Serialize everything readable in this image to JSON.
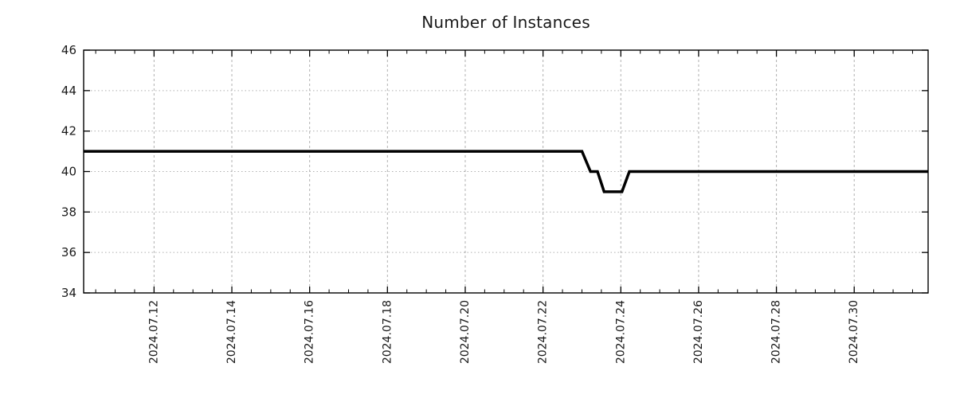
{
  "chart_data": {
    "type": "line",
    "title": "Number of Instances",
    "xlabel": "",
    "ylabel": "",
    "legend": "none",
    "grid": true,
    "x_axis": {
      "unit": "date (July 2024, decimal day-of-month)",
      "range": [
        10.19,
        31.9
      ],
      "minor_interval_days": 0.5,
      "major_ticks": [
        {
          "d": 12,
          "label": "2024.07.12"
        },
        {
          "d": 14,
          "label": "2024.07.14"
        },
        {
          "d": 16,
          "label": "2024.07.16"
        },
        {
          "d": 18,
          "label": "2024.07.18"
        },
        {
          "d": 20,
          "label": "2024.07.20"
        },
        {
          "d": 22,
          "label": "2024.07.22"
        },
        {
          "d": 24,
          "label": "2024.07.24"
        },
        {
          "d": 26,
          "label": "2024.07.26"
        },
        {
          "d": 28,
          "label": "2024.07.28"
        },
        {
          "d": 30,
          "label": "2024.07.30"
        }
      ]
    },
    "y_axis": {
      "range": [
        34,
        46
      ],
      "ticks": [
        34,
        36,
        38,
        40,
        42,
        44,
        46
      ]
    },
    "series": [
      {
        "name": "Number of Instances",
        "color": "#000000",
        "points_july_days": [
          [
            10.19,
            41
          ],
          [
            23.0,
            41
          ],
          [
            23.22,
            40
          ],
          [
            23.4,
            40
          ],
          [
            23.57,
            39
          ],
          [
            24.03,
            39
          ],
          [
            24.22,
            40
          ],
          [
            31.9,
            40
          ]
        ],
        "summary": "Constant at 41 instances until 2024-07-23; during 2024-07-23 steps down to 40 and then to 39; returns to 40 early on 2024-07-24 and remains at 40 through the end of the range."
      }
    ],
    "colors": {
      "line": "#000000",
      "grid": "#b0b0b0",
      "axis": "#000000",
      "text": "#1a1a1a"
    }
  }
}
